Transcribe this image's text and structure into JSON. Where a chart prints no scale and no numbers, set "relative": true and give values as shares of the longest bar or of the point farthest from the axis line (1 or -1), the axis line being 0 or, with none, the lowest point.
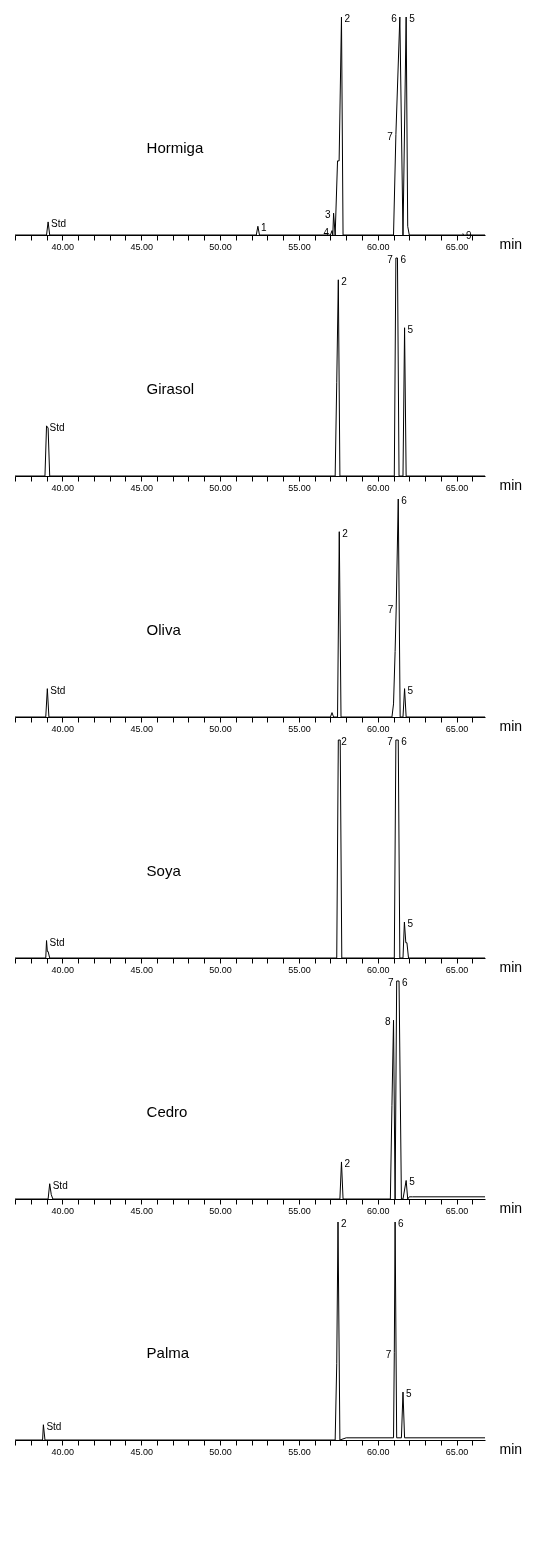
{
  "chart_data": [
    {
      "type": "line",
      "relative": true,
      "tick_labels": "x",
      "xlabel": "min",
      "xlim": [
        37.0,
        66.8
      ],
      "xticks": [
        {
          "value": 37,
          "label": null
        },
        {
          "value": 38,
          "label": null
        },
        {
          "value": 39,
          "label": null
        },
        {
          "value": 40,
          "label": "40.00"
        },
        {
          "value": 41,
          "label": null
        },
        {
          "value": 42,
          "label": null
        },
        {
          "value": 43,
          "label": null
        },
        {
          "value": 44,
          "label": null
        },
        {
          "value": 45,
          "label": "45.00"
        },
        {
          "value": 46,
          "label": null
        },
        {
          "value": 47,
          "label": null
        },
        {
          "value": 48,
          "label": null
        },
        {
          "value": 49,
          "label": null
        },
        {
          "value": 50,
          "label": "50.00"
        },
        {
          "value": 51,
          "label": null
        },
        {
          "value": 52,
          "label": null
        },
        {
          "value": 53,
          "label": null
        },
        {
          "value": 54,
          "label": null
        },
        {
          "value": 55,
          "label": "55.00"
        },
        {
          "value": 56,
          "label": null
        },
        {
          "value": 57,
          "label": null
        },
        {
          "value": 58,
          "label": null
        },
        {
          "value": 59,
          "label": null
        },
        {
          "value": 60,
          "label": "60.00"
        },
        {
          "value": 61,
          "label": null
        },
        {
          "value": 62,
          "label": null
        },
        {
          "value": 63,
          "label": null
        },
        {
          "value": 64,
          "label": null
        },
        {
          "value": 65,
          "label": "65.00"
        },
        {
          "value": 66,
          "label": null
        }
      ],
      "series": [
        {
          "color": "#000000",
          "x": [
            37.0,
            39.0,
            39.1,
            39.2,
            52.3,
            52.4,
            52.5,
            57.0,
            57.1,
            57.15,
            57.2,
            57.3,
            57.45,
            57.55,
            57.7,
            57.8,
            61.0,
            61.15,
            61.4,
            61.6,
            61.8,
            61.9,
            62.0,
            65.3,
            65.4,
            65.5,
            66.8
          ],
          "values": [
            0,
            0,
            0.06,
            0,
            0,
            0.04,
            0,
            0,
            0.02,
            0,
            0.1,
            0,
            0.34,
            0.34,
            1,
            0,
            0,
            0.46,
            1,
            0,
            1,
            0.04,
            0,
            0,
            0.005,
            0,
            0
          ]
        }
      ],
      "annotations": [
        "Hormiga",
        {
          "text": "Std",
          "x": 39.1,
          "y": 0.06
        },
        {
          "text": "1",
          "x": 52.4,
          "y": 0.04
        },
        {
          "text": "4",
          "x": 57.1,
          "y": 0.02
        },
        {
          "text": "3",
          "x": 57.2,
          "y": 0.1
        },
        {
          "text": "2",
          "x": 57.7,
          "y": 1
        },
        {
          "text": "7",
          "x": 61.15,
          "y": 0.46
        },
        {
          "text": "6",
          "x": 61.4,
          "y": 1
        },
        {
          "text": "5",
          "x": 61.8,
          "y": 1
        },
        {
          "text": "9",
          "x": 65.4,
          "y": 0.005
        }
      ]
    },
    {
      "type": "line",
      "relative": true,
      "tick_labels": "x",
      "xlabel": "min",
      "xlim": [
        37.0,
        66.8
      ],
      "xticks": [
        {
          "value": 37,
          "label": null
        },
        {
          "value": 38,
          "label": null
        },
        {
          "value": 39,
          "label": null
        },
        {
          "value": 40,
          "label": "40.00"
        },
        {
          "value": 41,
          "label": null
        },
        {
          "value": 42,
          "label": null
        },
        {
          "value": 43,
          "label": null
        },
        {
          "value": 44,
          "label": null
        },
        {
          "value": 45,
          "label": "45.00"
        },
        {
          "value": 46,
          "label": null
        },
        {
          "value": 47,
          "label": null
        },
        {
          "value": 48,
          "label": null
        },
        {
          "value": 49,
          "label": null
        },
        {
          "value": 50,
          "label": "50.00"
        },
        {
          "value": 51,
          "label": null
        },
        {
          "value": 52,
          "label": null
        },
        {
          "value": 53,
          "label": null
        },
        {
          "value": 54,
          "label": null
        },
        {
          "value": 55,
          "label": "55.00"
        },
        {
          "value": 56,
          "label": null
        },
        {
          "value": 57,
          "label": null
        },
        {
          "value": 58,
          "label": null
        },
        {
          "value": 59,
          "label": null
        },
        {
          "value": 60,
          "label": "60.00"
        },
        {
          "value": 61,
          "label": null
        },
        {
          "value": 62,
          "label": null
        },
        {
          "value": 63,
          "label": null
        },
        {
          "value": 64,
          "label": null
        },
        {
          "value": 65,
          "label": "65.00"
        },
        {
          "value": 66,
          "label": null
        }
      ],
      "series": [
        {
          "color": "#000000",
          "x": [
            37.0,
            38.9,
            39.0,
            39.1,
            39.2,
            57.3,
            57.4,
            57.5,
            57.6,
            61.05,
            61.15,
            61.25,
            61.35,
            61.6,
            61.7,
            61.8,
            66.8
          ],
          "values": [
            0,
            0,
            0.23,
            0.22,
            0,
            0,
            0.43,
            0.9,
            0,
            0,
            1,
            1,
            0,
            0,
            0.68,
            0,
            0
          ]
        }
      ],
      "annotations": [
        "Girasol",
        {
          "text": "Std",
          "x": 39.0,
          "y": 0.23
        },
        {
          "text": "2",
          "x": 57.5,
          "y": 0.9
        },
        {
          "text": "7",
          "x": 61.15,
          "y": 1
        },
        {
          "text": "6",
          "x": 61.25,
          "y": 1
        },
        {
          "text": "5",
          "x": 61.7,
          "y": 0.68
        }
      ]
    },
    {
      "type": "line",
      "relative": true,
      "tick_labels": "x",
      "xlabel": "min",
      "xlim": [
        37.0,
        66.8
      ],
      "xticks": [
        {
          "value": 37,
          "label": null
        },
        {
          "value": 38,
          "label": null
        },
        {
          "value": 39,
          "label": null
        },
        {
          "value": 40,
          "label": "40.00"
        },
        {
          "value": 41,
          "label": null
        },
        {
          "value": 42,
          "label": null
        },
        {
          "value": 43,
          "label": null
        },
        {
          "value": 44,
          "label": null
        },
        {
          "value": 45,
          "label": "45.00"
        },
        {
          "value": 46,
          "label": null
        },
        {
          "value": 47,
          "label": null
        },
        {
          "value": 48,
          "label": null
        },
        {
          "value": 49,
          "label": null
        },
        {
          "value": 50,
          "label": "50.00"
        },
        {
          "value": 51,
          "label": null
        },
        {
          "value": 52,
          "label": null
        },
        {
          "value": 53,
          "label": null
        },
        {
          "value": 54,
          "label": null
        },
        {
          "value": 55,
          "label": "55.00"
        },
        {
          "value": 56,
          "label": null
        },
        {
          "value": 57,
          "label": null
        },
        {
          "value": 58,
          "label": null
        },
        {
          "value": 59,
          "label": null
        },
        {
          "value": 60,
          "label": "60.00"
        },
        {
          "value": 61,
          "label": null
        },
        {
          "value": 62,
          "label": null
        },
        {
          "value": 63,
          "label": null
        },
        {
          "value": 64,
          "label": null
        },
        {
          "value": 65,
          "label": "65.00"
        },
        {
          "value": 66,
          "label": null
        }
      ],
      "series": [
        {
          "color": "#000000",
          "x": [
            37.0,
            38.95,
            39.05,
            39.15,
            57.0,
            57.1,
            57.2,
            57.45,
            57.56,
            57.67,
            60.9,
            61.0,
            61.1,
            61.17,
            61.3,
            61.42,
            61.6,
            61.7,
            61.8,
            66.8
          ],
          "values": [
            0,
            0,
            0.13,
            0,
            0,
            0.02,
            0,
            0,
            0.85,
            0,
            0,
            0.06,
            0.3,
            0.5,
            1,
            0,
            0,
            0.13,
            0,
            0
          ]
        }
      ],
      "annotations": [
        "Oliva",
        {
          "text": "Std",
          "x": 39.05,
          "y": 0.13
        },
        {
          "text": "2",
          "x": 57.56,
          "y": 0.85
        },
        {
          "text": "7",
          "x": 61.17,
          "y": 0.5
        },
        {
          "text": "6",
          "x": 61.3,
          "y": 1
        },
        {
          "text": "5",
          "x": 61.7,
          "y": 0.13
        }
      ]
    },
    {
      "type": "line",
      "relative": true,
      "tick_labels": "x",
      "xlabel": "min",
      "xlim": [
        37.0,
        66.8
      ],
      "xticks": [
        {
          "value": 37,
          "label": null
        },
        {
          "value": 38,
          "label": null
        },
        {
          "value": 39,
          "label": null
        },
        {
          "value": 40,
          "label": "40.00"
        },
        {
          "value": 41,
          "label": null
        },
        {
          "value": 42,
          "label": null
        },
        {
          "value": 43,
          "label": null
        },
        {
          "value": 44,
          "label": null
        },
        {
          "value": 45,
          "label": "45.00"
        },
        {
          "value": 46,
          "label": null
        },
        {
          "value": 47,
          "label": null
        },
        {
          "value": 48,
          "label": null
        },
        {
          "value": 49,
          "label": null
        },
        {
          "value": 50,
          "label": "50.00"
        },
        {
          "value": 51,
          "label": null
        },
        {
          "value": 52,
          "label": null
        },
        {
          "value": 53,
          "label": null
        },
        {
          "value": 54,
          "label": null
        },
        {
          "value": 55,
          "label": "55.00"
        },
        {
          "value": 56,
          "label": null
        },
        {
          "value": 57,
          "label": null
        },
        {
          "value": 58,
          "label": null
        },
        {
          "value": 59,
          "label": null
        },
        {
          "value": 60,
          "label": "60.00"
        },
        {
          "value": 61,
          "label": null
        },
        {
          "value": 62,
          "label": null
        },
        {
          "value": 63,
          "label": null
        },
        {
          "value": 64,
          "label": null
        },
        {
          "value": 65,
          "label": "65.00"
        },
        {
          "value": 66,
          "label": null
        }
      ],
      "series": [
        {
          "color": "#000000",
          "x": [
            37.0,
            38.95,
            39.0,
            39.05,
            39.1,
            39.2,
            57.4,
            57.5,
            57.62,
            57.72,
            61.05,
            61.15,
            61.3,
            61.4,
            61.6,
            61.69,
            61.78,
            61.85,
            61.95,
            66.8
          ],
          "values": [
            0,
            0,
            0.08,
            0.03,
            0.03,
            0,
            0,
            1,
            1,
            0,
            0,
            1,
            1,
            0,
            0,
            0.165,
            0.07,
            0.07,
            0,
            0
          ]
        }
      ],
      "annotations": [
        "Soya",
        {
          "text": "Std",
          "x": 39.0,
          "y": 0.08
        },
        {
          "text": "2",
          "x": 57.5,
          "y": 1
        },
        {
          "text": "7",
          "x": 61.15,
          "y": 1
        },
        {
          "text": "6",
          "x": 61.3,
          "y": 1
        },
        {
          "text": "5",
          "x": 61.69,
          "y": 0.165
        }
      ]
    },
    {
      "type": "line",
      "relative": true,
      "tick_labels": "x",
      "xlabel": "min",
      "xlim": [
        37.0,
        66.8
      ],
      "xticks": [
        {
          "value": 37,
          "label": null
        },
        {
          "value": 38,
          "label": null
        },
        {
          "value": 39,
          "label": null
        },
        {
          "value": 40,
          "label": "40.00"
        },
        {
          "value": 41,
          "label": null
        },
        {
          "value": 42,
          "label": null
        },
        {
          "value": 43,
          "label": null
        },
        {
          "value": 44,
          "label": null
        },
        {
          "value": 45,
          "label": "45.00"
        },
        {
          "value": 46,
          "label": null
        },
        {
          "value": 47,
          "label": null
        },
        {
          "value": 48,
          "label": null
        },
        {
          "value": 49,
          "label": null
        },
        {
          "value": 50,
          "label": "50.00"
        },
        {
          "value": 51,
          "label": null
        },
        {
          "value": 52,
          "label": null
        },
        {
          "value": 53,
          "label": null
        },
        {
          "value": 54,
          "label": null
        },
        {
          "value": 55,
          "label": "55.00"
        },
        {
          "value": 56,
          "label": null
        },
        {
          "value": 57,
          "label": null
        },
        {
          "value": 58,
          "label": null
        },
        {
          "value": 59,
          "label": null
        },
        {
          "value": 60,
          "label": "60.00"
        },
        {
          "value": 61,
          "label": null
        },
        {
          "value": 62,
          "label": null
        },
        {
          "value": 63,
          "label": null
        },
        {
          "value": 64,
          "label": null
        },
        {
          "value": 65,
          "label": "65.00"
        },
        {
          "value": 66,
          "label": null
        }
      ],
      "series": [
        {
          "color": "#000000",
          "x": [
            37.0,
            39.1,
            39.2,
            39.3,
            39.4,
            57.6,
            57.7,
            57.8,
            60.8,
            60.9,
            61.0,
            61.1,
            61.2,
            61.35,
            61.5,
            61.6,
            61.8,
            61.9,
            62.0,
            62.2,
            66.8
          ],
          "values": [
            0,
            0,
            0.07,
            0.02,
            0,
            0,
            0.17,
            0,
            0,
            0.43,
            0.82,
            0,
            1,
            1,
            0,
            0,
            0.085,
            0,
            0.01,
            0.01,
            0.01
          ]
        }
      ],
      "annotations": [
        "Cedro",
        {
          "text": "Std",
          "x": 39.2,
          "y": 0.07
        },
        {
          "text": "2",
          "x": 57.7,
          "y": 0.17
        },
        {
          "text": "8",
          "x": 61.0,
          "y": 0.82
        },
        {
          "text": "7",
          "x": 61.2,
          "y": 1
        },
        {
          "text": "6",
          "x": 61.35,
          "y": 1
        },
        {
          "text": "5",
          "x": 61.8,
          "y": 0.085
        }
      ]
    },
    {
      "type": "line",
      "relative": true,
      "tick_labels": "x",
      "xlabel": "min",
      "xlim": [
        37.0,
        66.8
      ],
      "xticks": [
        {
          "value": 37,
          "label": null
        },
        {
          "value": 38,
          "label": null
        },
        {
          "value": 39,
          "label": null
        },
        {
          "value": 40,
          "label": "40.00"
        },
        {
          "value": 41,
          "label": null
        },
        {
          "value": 42,
          "label": null
        },
        {
          "value": 43,
          "label": null
        },
        {
          "value": 44,
          "label": null
        },
        {
          "value": 45,
          "label": "45.00"
        },
        {
          "value": 46,
          "label": null
        },
        {
          "value": 47,
          "label": null
        },
        {
          "value": 48,
          "label": null
        },
        {
          "value": 49,
          "label": null
        },
        {
          "value": 50,
          "label": "50.00"
        },
        {
          "value": 51,
          "label": null
        },
        {
          "value": 52,
          "label": null
        },
        {
          "value": 53,
          "label": null
        },
        {
          "value": 54,
          "label": null
        },
        {
          "value": 55,
          "label": "55.00"
        },
        {
          "value": 56,
          "label": null
        },
        {
          "value": 57,
          "label": null
        },
        {
          "value": 58,
          "label": null
        },
        {
          "value": 59,
          "label": null
        },
        {
          "value": 60,
          "label": "60.00"
        },
        {
          "value": 61,
          "label": null
        },
        {
          "value": 62,
          "label": null
        },
        {
          "value": 63,
          "label": null
        },
        {
          "value": 64,
          "label": null
        },
        {
          "value": 65,
          "label": "65.00"
        },
        {
          "value": 66,
          "label": null
        }
      ],
      "series": [
        {
          "color": "#000000",
          "x": [
            37.0,
            38.75,
            38.8,
            38.9,
            57.3,
            57.4,
            57.48,
            57.6,
            58.0,
            61.0,
            61.05,
            61.1,
            61.2,
            61.5,
            61.6,
            61.7,
            66.8
          ],
          "values": [
            0,
            0,
            0.07,
            0,
            0,
            0.35,
            1,
            0,
            0.01,
            0.01,
            0.4,
            1,
            0.01,
            0.01,
            0.22,
            0.01,
            0.01
          ]
        }
      ],
      "annotations": [
        "Palma",
        {
          "text": "Std",
          "x": 38.8,
          "y": 0.07
        },
        {
          "text": "2",
          "x": 57.48,
          "y": 1
        },
        {
          "text": "7",
          "x": 61.05,
          "y": 0.4
        },
        {
          "text": "6",
          "x": 61.1,
          "y": 1
        },
        {
          "text": "5",
          "x": 61.6,
          "y": 0.22
        }
      ]
    }
  ]
}
